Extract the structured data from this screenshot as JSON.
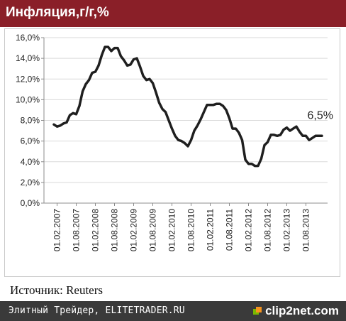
{
  "header": {
    "title": "Инфляция,г/г,%"
  },
  "source": "Источник: Reuters",
  "footer": {
    "text": "Элитный Трейдер, ELITETRADER.RU",
    "brand": "clip2net.com"
  },
  "colors": {
    "header_bg": "#8a1f28",
    "footer_bg": "#3a3a3a",
    "line": "#1f1f1f",
    "grid": "#d9d9d9"
  },
  "chart_data": {
    "type": "line",
    "title": "Инфляция,г/г,%",
    "xlabel": "",
    "ylabel": "",
    "ylim": [
      0,
      16
    ],
    "yticks": [
      0,
      2,
      4,
      6,
      8,
      10,
      12,
      14,
      16
    ],
    "ytick_labels": [
      "0,0%",
      "2,0%",
      "4,0%",
      "6,0%",
      "8,0%",
      "10,0%",
      "12,0%",
      "14,0%",
      "16,0%"
    ],
    "xtick_labels": [
      "01.02.2007",
      "01.08.2007",
      "01.02.2008",
      "01.08.2008",
      "01.02.2009",
      "01.08.2009",
      "01.02.2010",
      "01.08.2010",
      "01.02.2011",
      "01.08.2011",
      "01.02.2012",
      "01.08.2012",
      "01.02.2013",
      "01.08.2013"
    ],
    "grid": true,
    "annotations": [
      {
        "text": "6,5%",
        "x": "2014-01",
        "y": 6.5
      }
    ],
    "series": [
      {
        "x": [
          "2007-01",
          "2007-02",
          "2007-03",
          "2007-04",
          "2007-05",
          "2007-06",
          "2007-07",
          "2007-08",
          "2007-09",
          "2007-10",
          "2007-11",
          "2007-12",
          "2008-01",
          "2008-02",
          "2008-03",
          "2008-04",
          "2008-05",
          "2008-06",
          "2008-07",
          "2008-08",
          "2008-09",
          "2008-10",
          "2008-11",
          "2008-12",
          "2009-01",
          "2009-02",
          "2009-03",
          "2009-04",
          "2009-05",
          "2009-06",
          "2009-07",
          "2009-08",
          "2009-09",
          "2009-10",
          "2009-11",
          "2009-12",
          "2010-01",
          "2010-02",
          "2010-03",
          "2010-04",
          "2010-05",
          "2010-06",
          "2010-07",
          "2010-08",
          "2010-09",
          "2010-10",
          "2010-11",
          "2010-12",
          "2011-01",
          "2011-02",
          "2011-03",
          "2011-04",
          "2011-05",
          "2011-06",
          "2011-07",
          "2011-08",
          "2011-09",
          "2011-10",
          "2011-11",
          "2011-12",
          "2012-01",
          "2012-02",
          "2012-03",
          "2012-04",
          "2012-05",
          "2012-06",
          "2012-07",
          "2012-08",
          "2012-09",
          "2012-10",
          "2012-11",
          "2012-12",
          "2013-01",
          "2013-02",
          "2013-03",
          "2013-04",
          "2013-05",
          "2013-06",
          "2013-07",
          "2013-08",
          "2013-09",
          "2013-10",
          "2013-11",
          "2013-12",
          "2014-01"
        ],
        "values": [
          7.6,
          7.4,
          7.5,
          7.7,
          7.8,
          8.5,
          8.7,
          8.6,
          9.4,
          10.8,
          11.5,
          11.9,
          12.6,
          12.7,
          13.3,
          14.3,
          15.1,
          15.1,
          14.7,
          15.0,
          15.0,
          14.2,
          13.8,
          13.3,
          13.4,
          13.9,
          14.0,
          13.2,
          12.3,
          11.9,
          12.0,
          11.6,
          10.7,
          9.7,
          9.1,
          8.8,
          8.0,
          7.2,
          6.5,
          6.1,
          6.0,
          5.8,
          5.5,
          6.1,
          7.0,
          7.5,
          8.1,
          8.8,
          9.5,
          9.5,
          9.5,
          9.6,
          9.6,
          9.4,
          9.0,
          8.2,
          7.2,
          7.2,
          6.8,
          6.1,
          4.2,
          3.8,
          3.8,
          3.6,
          3.6,
          4.3,
          5.6,
          5.9,
          6.6,
          6.6,
          6.5,
          6.6,
          7.1,
          7.3,
          7.0,
          7.2,
          7.4,
          6.9,
          6.5,
          6.5,
          6.1,
          6.3,
          6.5,
          6.5,
          6.5
        ]
      }
    ]
  }
}
